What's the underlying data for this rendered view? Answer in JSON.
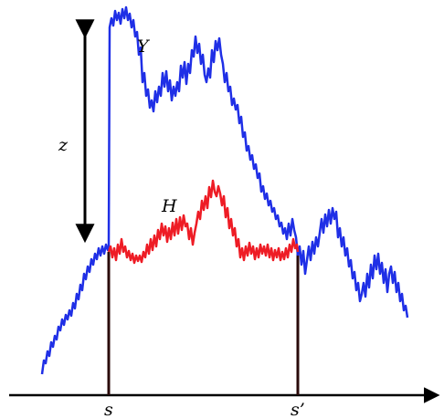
{
  "labels": {
    "Y": "Y",
    "H": "H",
    "z": "z",
    "s": "s",
    "s_prime": "s’"
  },
  "colors": {
    "Y_path": "#1f2fe6",
    "H_path": "#ee1c25",
    "axis": "#000000",
    "marker_line": "#2a0a0a"
  }
}
